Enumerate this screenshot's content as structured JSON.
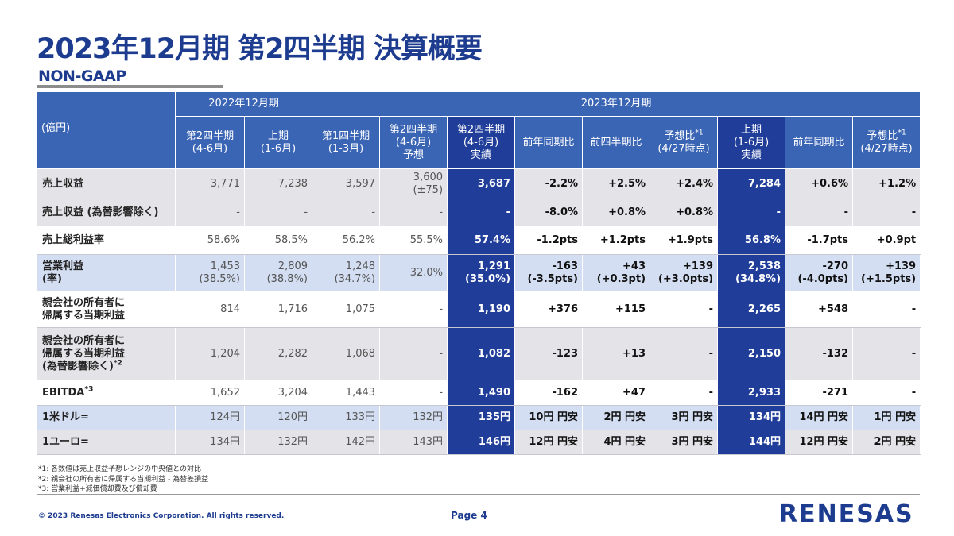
{
  "title": "2023年12月期 第2四半期 決算概要",
  "subtitle": "NON-GAAP",
  "table": {
    "unit_label": "(億円)",
    "group_2022": "2022年12月期",
    "group_2023": "2023年12月期",
    "columns": [
      "第2四半期\n(4-6月)",
      "上期\n(1-6月)",
      "第1四半期\n(1-3月)",
      "第2四半期\n(4-6月)\n予想",
      "第2四半期\n(4-6月)\n実績",
      "前年同期比",
      "前四半期比",
      "予想比",
      "上期\n(1-6月)\n実績",
      "前年同期比",
      "予想比"
    ],
    "col_notes": {
      "forecast_ratio_note": "*1",
      "forecast_ratio_date": "(4/27時点)"
    },
    "rows": [
      {
        "label": "売上収益",
        "cells": [
          "3,771",
          "7,238",
          "3,597",
          "3,600\n(±75)",
          "3,687",
          "-2.2%",
          "+2.5%",
          "+2.4%",
          "7,284",
          "+0.6%",
          "+1.2%"
        ]
      },
      {
        "label": "売上収益 (為替影響除く)",
        "cells": [
          "-",
          "-",
          "-",
          "-",
          "-",
          "-8.0%",
          "+0.8%",
          "+0.8%",
          "-",
          "-",
          "-"
        ]
      },
      {
        "label": "売上総利益率",
        "cells": [
          "58.6%",
          "58.5%",
          "56.2%",
          "55.5%",
          "57.4%",
          "-1.2pts",
          "+1.2pts",
          "+1.9pts",
          "56.8%",
          "-1.7pts",
          "+0.9pt"
        ]
      },
      {
        "label": "営業利益\n(率)",
        "cells": [
          "1,453\n(38.5%)",
          "2,809\n(38.8%)",
          "1,248\n(34.7%)",
          "32.0%",
          "1,291\n(35.0%)",
          "-163\n(-3.5pts)",
          "+43\n(+0.3pt)",
          "+139\n(+3.0pts)",
          "2,538\n(34.8%)",
          "-270\n(-4.0pts)",
          "+139\n(+1.5pts)"
        ]
      },
      {
        "label": "親会社の所有者に\n帰属する当期利益",
        "cells": [
          "814",
          "1,716",
          "1,075",
          "-",
          "1,190",
          "+376",
          "+115",
          "-",
          "2,265",
          "+548",
          "-"
        ]
      },
      {
        "label": "親会社の所有者に\n帰属する当期利益\n(為替影響除く)",
        "label_note": "*2",
        "cells": [
          "1,204",
          "2,282",
          "1,068",
          "-",
          "1,082",
          "-123",
          "+13",
          "-",
          "2,150",
          "-132",
          "-"
        ]
      },
      {
        "label": "EBITDA",
        "label_note": "*3",
        "cells": [
          "1,652",
          "3,204",
          "1,443",
          "-",
          "1,490",
          "-162",
          "+47",
          "-",
          "2,933",
          "-271",
          "-"
        ]
      },
      {
        "label": "1米ドル=",
        "cells": [
          "124円",
          "120円",
          "133円",
          "132円",
          "135円",
          "10円 円安",
          "2円 円安",
          "3円 円安",
          "134円",
          "14円 円安",
          "1円 円安"
        ]
      },
      {
        "label": "1ユーロ=",
        "cells": [
          "134円",
          "132円",
          "142円",
          "143円",
          "146円",
          "12円 円安",
          "4円 円安",
          "3円 円安",
          "144円",
          "12円 円安",
          "2円 円安"
        ]
      }
    ]
  },
  "footnotes": [
    "*1: 各数値は売上収益予想レンジの中央値との対比",
    "*2: 親会社の所有者に帰属する当期利益 - 為替差損益",
    "*3: 営業利益+減価償却費及び償却費"
  ],
  "footer": {
    "copyright": "© 2023 Renesas Electronics Corporation. All rights reserved.",
    "page": "Page 4",
    "logo_text": "RENESAS"
  },
  "colors": {
    "brand_blue": "#1d3c8f",
    "header_blue": "#3a64b4",
    "highlight_blue": "#1f3d99"
  }
}
